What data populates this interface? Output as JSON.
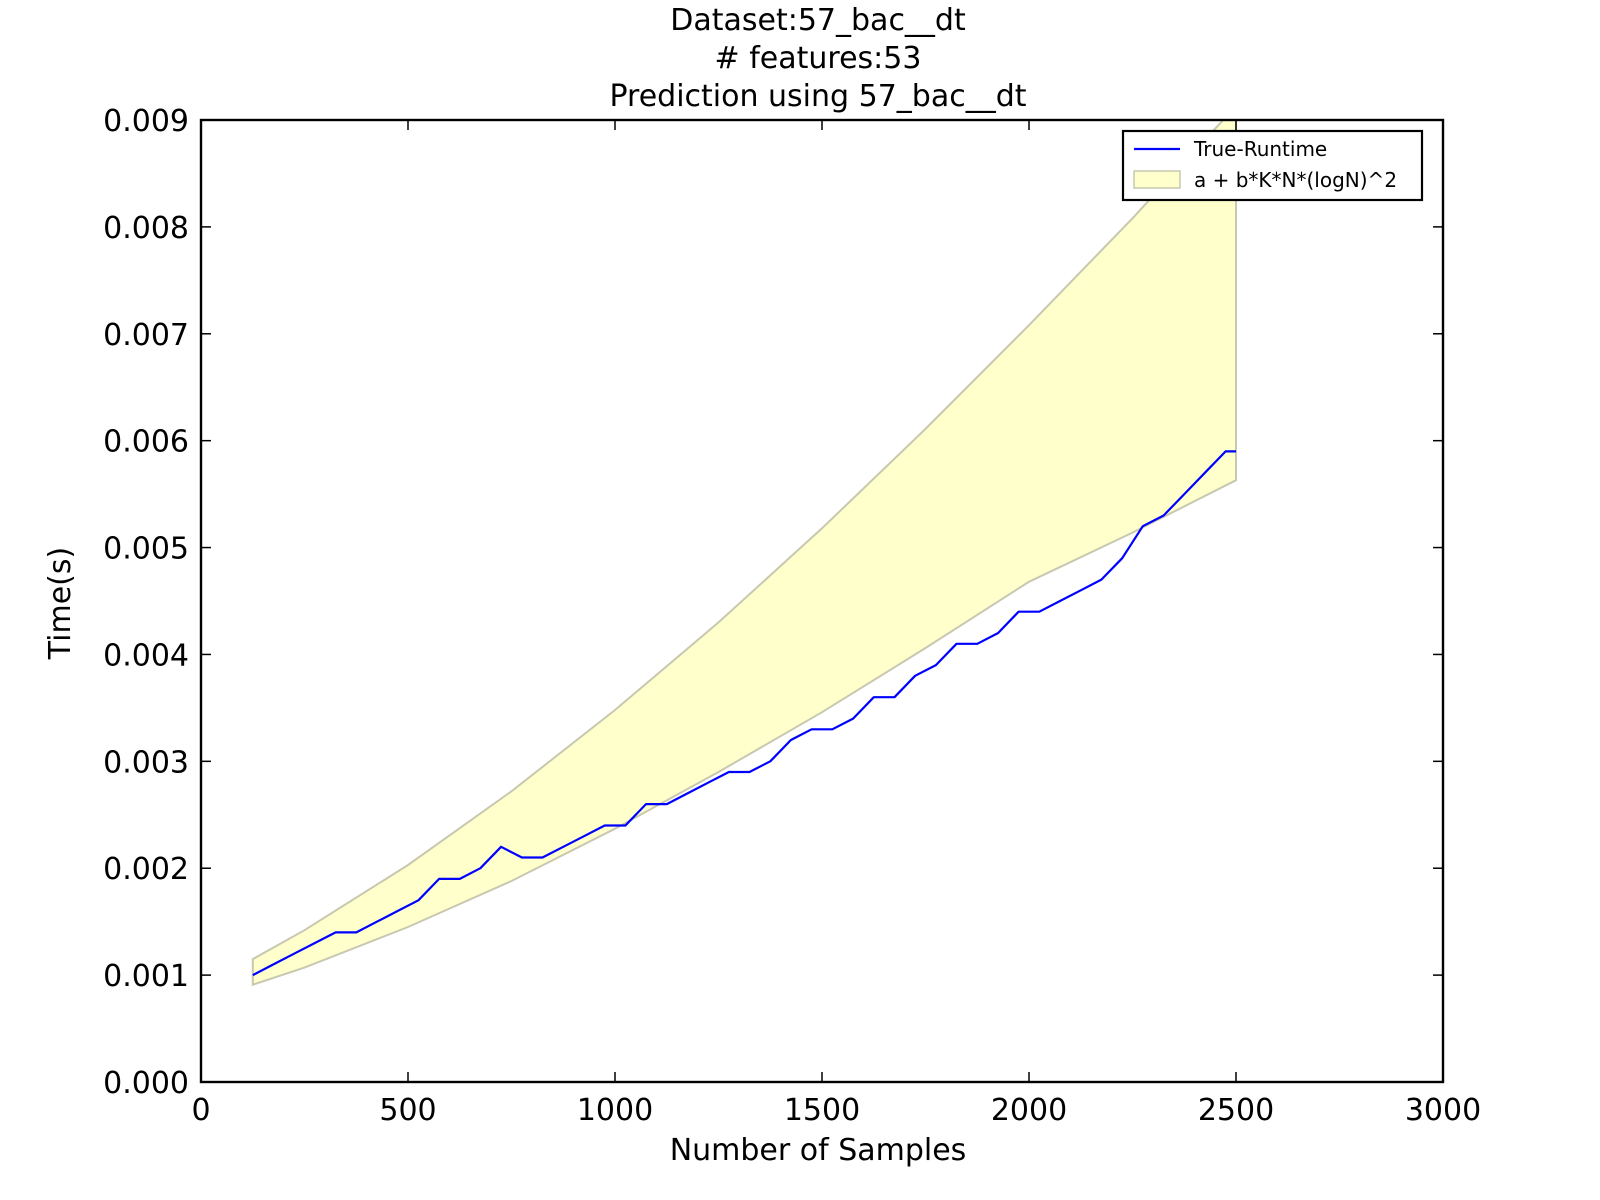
{
  "chart_data": {
    "type": "line",
    "title_lines": [
      "Dataset:57_bac__dt",
      "# features:53",
      "Prediction using 57_bac__dt"
    ],
    "xlabel": "Number of Samples",
    "ylabel": "Time(s)",
    "xlim": [
      0,
      3000
    ],
    "ylim": [
      0,
      0.009
    ],
    "x_ticks": [
      0,
      500,
      1000,
      1500,
      2000,
      2500,
      3000
    ],
    "x_tick_labels": [
      "0",
      "500",
      "1000",
      "1500",
      "2000",
      "2500",
      "3000"
    ],
    "y_ticks": [
      0,
      0.001,
      0.002,
      0.003,
      0.004,
      0.005,
      0.006,
      0.007,
      0.008,
      0.009
    ],
    "y_tick_labels": [
      "0.000",
      "0.001",
      "0.002",
      "0.003",
      "0.004",
      "0.005",
      "0.006",
      "0.007",
      "0.008",
      "0.009"
    ],
    "grid": false,
    "legend_position": "top-right",
    "colors": {
      "line": "#0000ff",
      "band_fill": "#ffffcc",
      "band_edge": "#c8c8b0"
    },
    "series": [
      {
        "name": "True-Runtime",
        "kind": "line",
        "x": [
          125,
          175,
          225,
          275,
          325,
          375,
          425,
          475,
          525,
          575,
          625,
          675,
          725,
          775,
          825,
          875,
          925,
          975,
          1025,
          1075,
          1125,
          1175,
          1225,
          1275,
          1325,
          1375,
          1425,
          1475,
          1525,
          1575,
          1625,
          1675,
          1725,
          1775,
          1825,
          1875,
          1925,
          1975,
          2025,
          2075,
          2125,
          2175,
          2225,
          2275,
          2325,
          2375,
          2425,
          2475,
          2500
        ],
        "y": [
          0.001,
          0.0011,
          0.0012,
          0.0013,
          0.0014,
          0.0014,
          0.0015,
          0.0016,
          0.0017,
          0.0019,
          0.0019,
          0.002,
          0.0022,
          0.0021,
          0.0021,
          0.0022,
          0.0023,
          0.0024,
          0.0024,
          0.0026,
          0.0026,
          0.0027,
          0.0028,
          0.0029,
          0.0029,
          0.003,
          0.0032,
          0.0033,
          0.0033,
          0.0034,
          0.0036,
          0.0036,
          0.0038,
          0.0039,
          0.0041,
          0.0041,
          0.0042,
          0.0044,
          0.0044,
          0.0045,
          0.0046,
          0.0047,
          0.0049,
          0.0052,
          0.0053,
          0.0055,
          0.0057,
          0.0059,
          0.0059
        ]
      },
      {
        "name": "a + b*K*N*(logN)^2",
        "kind": "band",
        "x": [
          125,
          250,
          500,
          750,
          1000,
          1250,
          1500,
          1750,
          2000,
          2250,
          2500
        ],
        "upper": [
          0.00115,
          0.00142,
          0.00203,
          0.00272,
          0.00348,
          0.0043,
          0.00518,
          0.00611,
          0.00708,
          0.00808,
          0.00913
        ],
        "lower": [
          0.00091,
          0.00107,
          0.00145,
          0.00188,
          0.00237,
          0.0029,
          0.00346,
          0.00406,
          0.00468,
          0.00514,
          0.00563
        ]
      }
    ]
  }
}
